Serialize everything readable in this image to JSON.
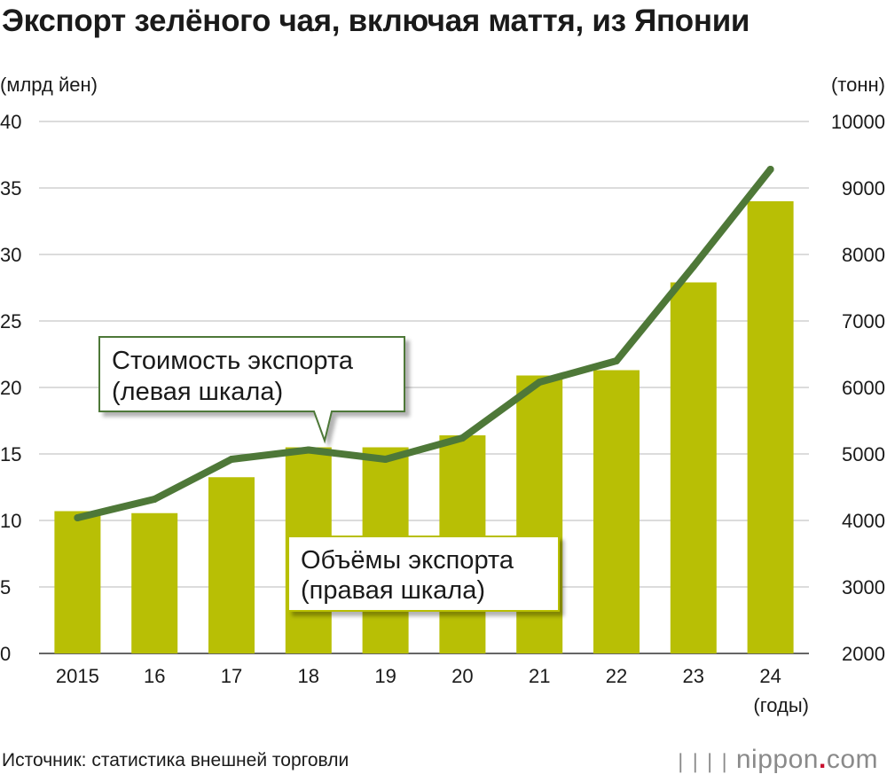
{
  "title": "Экспорт зелёного чая, включая маття, из Японии",
  "source": "Источник: статистика внешней торговли",
  "brand": {
    "icon": "nippon-logo-bars-icon",
    "name": "nippon",
    "dot": ".",
    "tld": "com"
  },
  "colors": {
    "bar": "#b8bf05",
    "line": "#4e7838",
    "grid": "#c8c8c8",
    "text": "#1a1a1a"
  },
  "chart_data": {
    "type": "bar+line",
    "categories": [
      "2015",
      "16",
      "17",
      "18",
      "19",
      "20",
      "21",
      "22",
      "23",
      "24"
    ],
    "xlabel": "(годы)",
    "ylabel_left": "(млрд йен)",
    "ylabel_right": "(тонн)",
    "ylim_left": [
      0,
      40
    ],
    "ylim_right": [
      2000,
      10000
    ],
    "left_ticks": [
      0,
      5,
      10,
      15,
      20,
      25,
      30,
      35,
      40
    ],
    "right_ticks": [
      2000,
      3000,
      4000,
      5000,
      6000,
      7000,
      8000,
      9000,
      10000
    ],
    "grid": true,
    "bars": {
      "axis": "right",
      "label": "Объёмы экспорта\n(правая шкала)",
      "values": [
        4140,
        4110,
        4650,
        5100,
        5100,
        5280,
        6180,
        6260,
        7580,
        8800
      ]
    },
    "line": {
      "axis": "left",
      "label": "Стоимость экспорта\n(левая шкала)",
      "values": [
        10.2,
        11.6,
        14.6,
        15.3,
        14.6,
        16.2,
        20.4,
        22.0,
        29.1,
        36.4
      ]
    }
  }
}
